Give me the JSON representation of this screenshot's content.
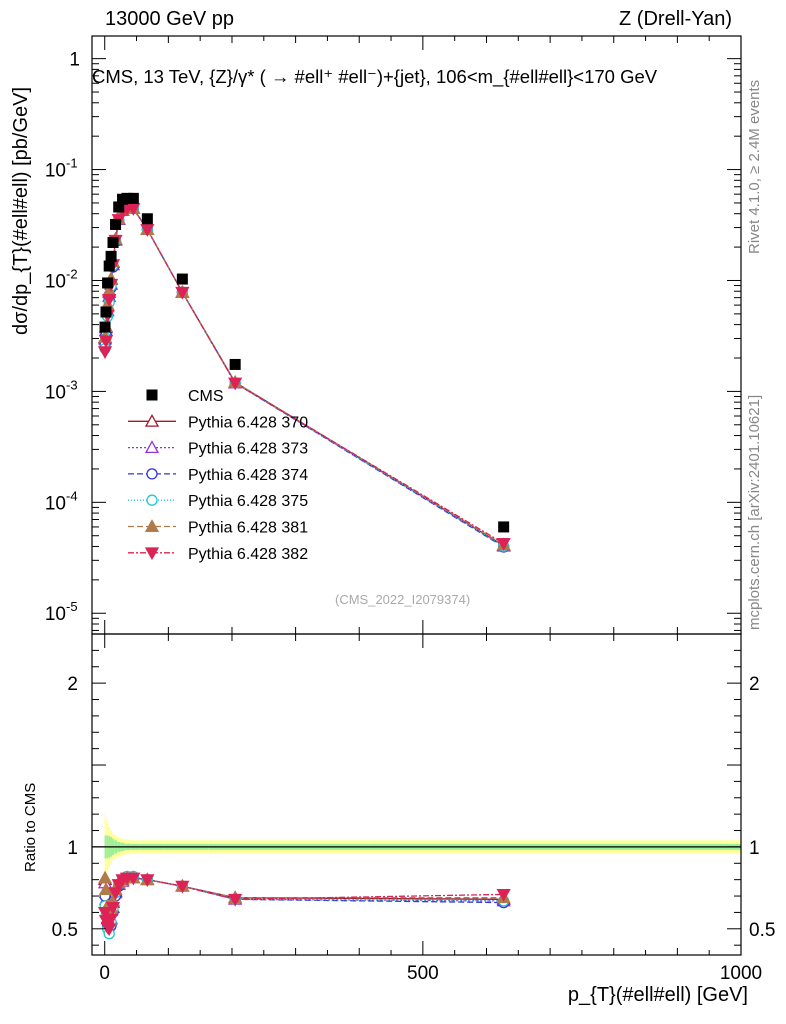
{
  "header": {
    "left": "13000 GeV pp",
    "right": "Z (Drell-Yan)"
  },
  "side_labels": {
    "rivet": "Rivet 4.1.0, ≥ 2.4M events",
    "mcplots": "mcplots.cern.ch [arXiv:2401.10621]"
  },
  "chart_data": {
    "type": "scatter",
    "title": "CMS, 13 TeV, {Z}/γ* ( →  #ell⁺ #ell⁻)+{jet}, 106<m_{#ell#ell}<170 GeV",
    "watermark": "(CMS_2022_I2079374)",
    "xlabel": "p_{T}(#ell#ell) [GeV]",
    "ylabel": "dσ/dp_{T}(#ell#ell) [pb/GeV]",
    "ratio_ylabel": "Ratio to CMS",
    "xlim": [
      -20,
      1000
    ],
    "ylim": [
      6.5e-06,
      1.6
    ],
    "ratio_ylim": [
      0.34,
      2.3
    ],
    "yscale": "log",
    "x_ticks": [
      "0",
      "500",
      "1000"
    ],
    "y_ticks": [
      "1",
      "10^-1",
      "10^-2",
      "10^-3",
      "10^-4",
      "10^-5"
    ],
    "ratio_ticks": [
      "0.5",
      "1",
      "2"
    ],
    "x": [
      0.5,
      2,
      4.5,
      7,
      10,
      13,
      17,
      22,
      28,
      35,
      45,
      67,
      122,
      205,
      627
    ],
    "reference": {
      "name": "CMS",
      "color": "#000000",
      "values": [
        0.0038,
        0.0052,
        0.0095,
        0.0135,
        0.0165,
        0.022,
        0.032,
        0.046,
        0.054,
        0.055,
        0.055,
        0.036,
        0.0103,
        0.00175,
        6e-05
      ],
      "band_inner": [
        0.07,
        0.07,
        0.07,
        0.065,
        0.06,
        0.05,
        0.04,
        0.03,
        0.025,
        0.02,
        0.018,
        0.018,
        0.018,
        0.018,
        0.018
      ],
      "band_outer": [
        0.2,
        0.17,
        0.15,
        0.12,
        0.1,
        0.08,
        0.07,
        0.06,
        0.05,
        0.045,
        0.04,
        0.04,
        0.04,
        0.04,
        0.04
      ]
    },
    "series": [
      {
        "name": "Pythia 6.428 370",
        "color": "#9b1b2a",
        "marker": "triangle-open",
        "dash": "",
        "ratio": [
          0.8,
          0.72,
          0.62,
          0.58,
          0.62,
          0.66,
          0.73,
          0.77,
          0.8,
          0.81,
          0.81,
          0.8,
          0.76,
          0.69,
          0.68
        ]
      },
      {
        "name": "Pythia 6.428 373",
        "color": "#9a32cd",
        "marker": "triangle-open",
        "dash": "2,2",
        "ratio": [
          0.78,
          0.68,
          0.56,
          0.53,
          0.56,
          0.63,
          0.72,
          0.77,
          0.79,
          0.81,
          0.81,
          0.8,
          0.76,
          0.68,
          0.67
        ]
      },
      {
        "name": "Pythia 6.428 374",
        "color": "#3333dd",
        "marker": "circle-open",
        "dash": "6,3",
        "ratio": [
          0.7,
          0.62,
          0.52,
          0.5,
          0.52,
          0.6,
          0.7,
          0.76,
          0.8,
          0.81,
          0.81,
          0.8,
          0.76,
          0.68,
          0.66
        ]
      },
      {
        "name": "Pythia 6.428 375",
        "color": "#22c9c9",
        "marker": "circle-open",
        "dash": "1,2",
        "ratio": [
          0.64,
          0.58,
          0.5,
          0.47,
          0.54,
          0.62,
          0.72,
          0.77,
          0.8,
          0.82,
          0.82,
          0.8,
          0.76,
          0.68,
          0.67
        ]
      },
      {
        "name": "Pythia 6.428 381",
        "color": "#b07a4a",
        "marker": "triangle-filled",
        "dash": "6,3",
        "ratio": [
          0.81,
          0.74,
          0.64,
          0.6,
          0.63,
          0.67,
          0.74,
          0.78,
          0.8,
          0.81,
          0.81,
          0.8,
          0.76,
          0.69,
          0.69
        ]
      },
      {
        "name": "Pythia 6.428 382",
        "color": "#dd2255",
        "marker": "triangle-down-filled",
        "dash": "6,2,2,2",
        "ratio": [
          0.6,
          0.55,
          0.51,
          0.5,
          0.56,
          0.63,
          0.72,
          0.77,
          0.8,
          0.81,
          0.81,
          0.8,
          0.76,
          0.68,
          0.71
        ]
      }
    ]
  }
}
